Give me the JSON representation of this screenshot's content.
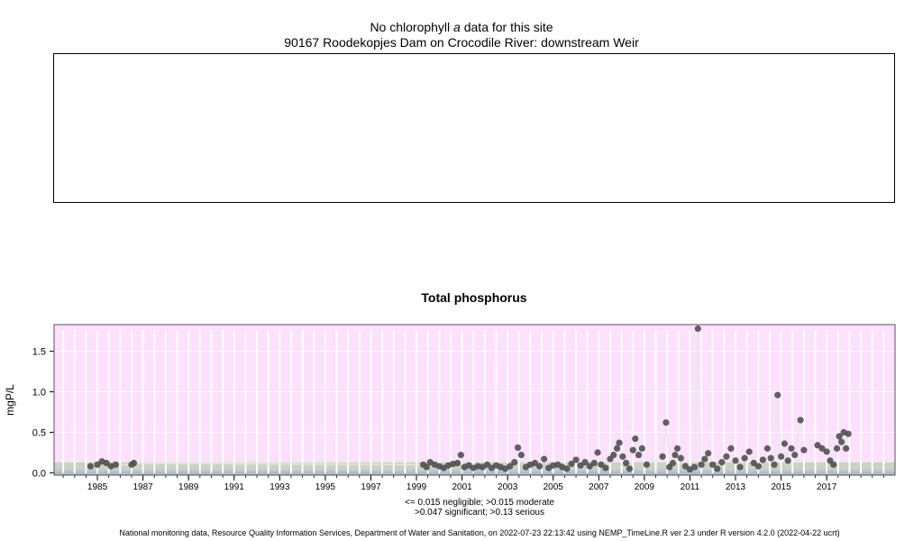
{
  "header": {
    "line1_prefix": "No chlorophyll",
    "line1_italic": "a",
    "line1_suffix": "data for this site",
    "site": "90167 Roodekopjes Dam on Crocodile River: downstream Weir"
  },
  "chart_data": {
    "type": "scatter",
    "title": "Total phosphorus",
    "xlabel": "",
    "ylabel": "mgP/L",
    "xlim": [
      1983.6,
      2020.5
    ],
    "ylim": [
      -0.03,
      1.83
    ],
    "yticks": [
      "0.0",
      "0.5",
      "1.0",
      "1.5"
    ],
    "xticks": [
      "1985",
      "1987",
      "1989",
      "1991",
      "1993",
      "1995",
      "1997",
      "1999",
      "2001",
      "2003",
      "2005",
      "2007",
      "2009",
      "2011",
      "2013",
      "2015",
      "2017"
    ],
    "bands": [
      {
        "label": "negligible",
        "from": 0,
        "to": 0.015,
        "color": "#a9b8c9"
      },
      {
        "label": "moderate",
        "from": 0.015,
        "to": 0.047,
        "color": "#c6c6c6"
      },
      {
        "label": "significant",
        "from": 0.047,
        "to": 0.13,
        "color": "#c9d3c5"
      },
      {
        "label": "serious",
        "from": 0.13,
        "to": 1.83,
        "color": "#fde0fd"
      }
    ],
    "series": [
      {
        "points": [
          [
            1985.2,
            0.08
          ],
          [
            1985.5,
            0.1
          ],
          [
            1985.7,
            0.14
          ],
          [
            1985.9,
            0.12
          ],
          [
            1986.1,
            0.08
          ],
          [
            1986.3,
            0.1
          ],
          [
            1987.0,
            0.1
          ],
          [
            1987.1,
            0.12
          ],
          [
            1999.8,
            0.1
          ],
          [
            1999.95,
            0.07
          ],
          [
            2000.1,
            0.13
          ],
          [
            2000.3,
            0.1
          ],
          [
            2000.5,
            0.08
          ],
          [
            2000.7,
            0.06
          ],
          [
            2000.9,
            0.09
          ],
          [
            2001.1,
            0.11
          ],
          [
            2001.3,
            0.12
          ],
          [
            2001.45,
            0.22
          ],
          [
            2001.6,
            0.07
          ],
          [
            2001.8,
            0.09
          ],
          [
            2002.0,
            0.06
          ],
          [
            2002.2,
            0.08
          ],
          [
            2002.4,
            0.07
          ],
          [
            2002.6,
            0.1
          ],
          [
            2002.8,
            0.06
          ],
          [
            2003.0,
            0.09
          ],
          [
            2003.2,
            0.07
          ],
          [
            2003.4,
            0.05
          ],
          [
            2003.6,
            0.08
          ],
          [
            2003.8,
            0.13
          ],
          [
            2003.95,
            0.31
          ],
          [
            2004.1,
            0.22
          ],
          [
            2004.3,
            0.07
          ],
          [
            2004.5,
            0.1
          ],
          [
            2004.7,
            0.12
          ],
          [
            2004.9,
            0.08
          ],
          [
            2005.1,
            0.17
          ],
          [
            2005.3,
            0.06
          ],
          [
            2005.5,
            0.09
          ],
          [
            2005.7,
            0.1
          ],
          [
            2005.9,
            0.07
          ],
          [
            2006.1,
            0.05
          ],
          [
            2006.3,
            0.11
          ],
          [
            2006.5,
            0.16
          ],
          [
            2006.7,
            0.09
          ],
          [
            2006.9,
            0.13
          ],
          [
            2007.1,
            0.08
          ],
          [
            2007.3,
            0.12
          ],
          [
            2007.45,
            0.25
          ],
          [
            2007.6,
            0.1
          ],
          [
            2007.8,
            0.06
          ],
          [
            2008.0,
            0.17
          ],
          [
            2008.15,
            0.22
          ],
          [
            2008.3,
            0.3
          ],
          [
            2008.4,
            0.37
          ],
          [
            2008.55,
            0.2
          ],
          [
            2008.7,
            0.12
          ],
          [
            2008.85,
            0.05
          ],
          [
            2009.0,
            0.28
          ],
          [
            2009.1,
            0.42
          ],
          [
            2009.25,
            0.22
          ],
          [
            2009.4,
            0.3
          ],
          [
            2009.6,
            0.1
          ],
          [
            2010.3,
            0.2
          ],
          [
            2010.45,
            0.62
          ],
          [
            2010.6,
            0.07
          ],
          [
            2010.75,
            0.12
          ],
          [
            2010.85,
            0.22
          ],
          [
            2010.95,
            0.3
          ],
          [
            2011.1,
            0.18
          ],
          [
            2011.3,
            0.08
          ],
          [
            2011.5,
            0.04
          ],
          [
            2011.7,
            0.07
          ],
          [
            2011.85,
            1.78
          ],
          [
            2012.0,
            0.1
          ],
          [
            2012.15,
            0.17
          ],
          [
            2012.3,
            0.24
          ],
          [
            2012.5,
            0.1
          ],
          [
            2012.7,
            0.05
          ],
          [
            2012.9,
            0.13
          ],
          [
            2013.1,
            0.2
          ],
          [
            2013.3,
            0.3
          ],
          [
            2013.5,
            0.15
          ],
          [
            2013.7,
            0.07
          ],
          [
            2013.9,
            0.18
          ],
          [
            2014.1,
            0.26
          ],
          [
            2014.3,
            0.12
          ],
          [
            2014.5,
            0.08
          ],
          [
            2014.7,
            0.16
          ],
          [
            2014.9,
            0.3
          ],
          [
            2015.05,
            0.18
          ],
          [
            2015.2,
            0.1
          ],
          [
            2015.35,
            0.96
          ],
          [
            2015.5,
            0.2
          ],
          [
            2015.65,
            0.36
          ],
          [
            2015.8,
            0.15
          ],
          [
            2015.95,
            0.3
          ],
          [
            2016.1,
            0.22
          ],
          [
            2016.35,
            0.65
          ],
          [
            2016.5,
            0.28
          ],
          [
            2017.1,
            0.34
          ],
          [
            2017.3,
            0.3
          ],
          [
            2017.5,
            0.26
          ],
          [
            2017.65,
            0.15
          ],
          [
            2017.8,
            0.1
          ],
          [
            2017.95,
            0.3
          ],
          [
            2018.05,
            0.45
          ],
          [
            2018.15,
            0.38
          ],
          [
            2018.25,
            0.5
          ],
          [
            2018.35,
            0.3
          ],
          [
            2018.45,
            0.48
          ]
        ]
      }
    ],
    "colors": {
      "points": "#505050",
      "frame": "#000000"
    }
  },
  "legend_note": {
    "line1": "<= 0.015 negligible; >0.015 moderate",
    "line2": ">0.047 significant; >0.13 serious"
  },
  "footer": "National monitoring data, Resource Quality Information Services, Department of Water and Sanitation, on 2022-07-23 22:13:42 using NEMP_TimeLine.R ver 2.3 under R version 4.2.0 (2022-04-22 ucrt)"
}
